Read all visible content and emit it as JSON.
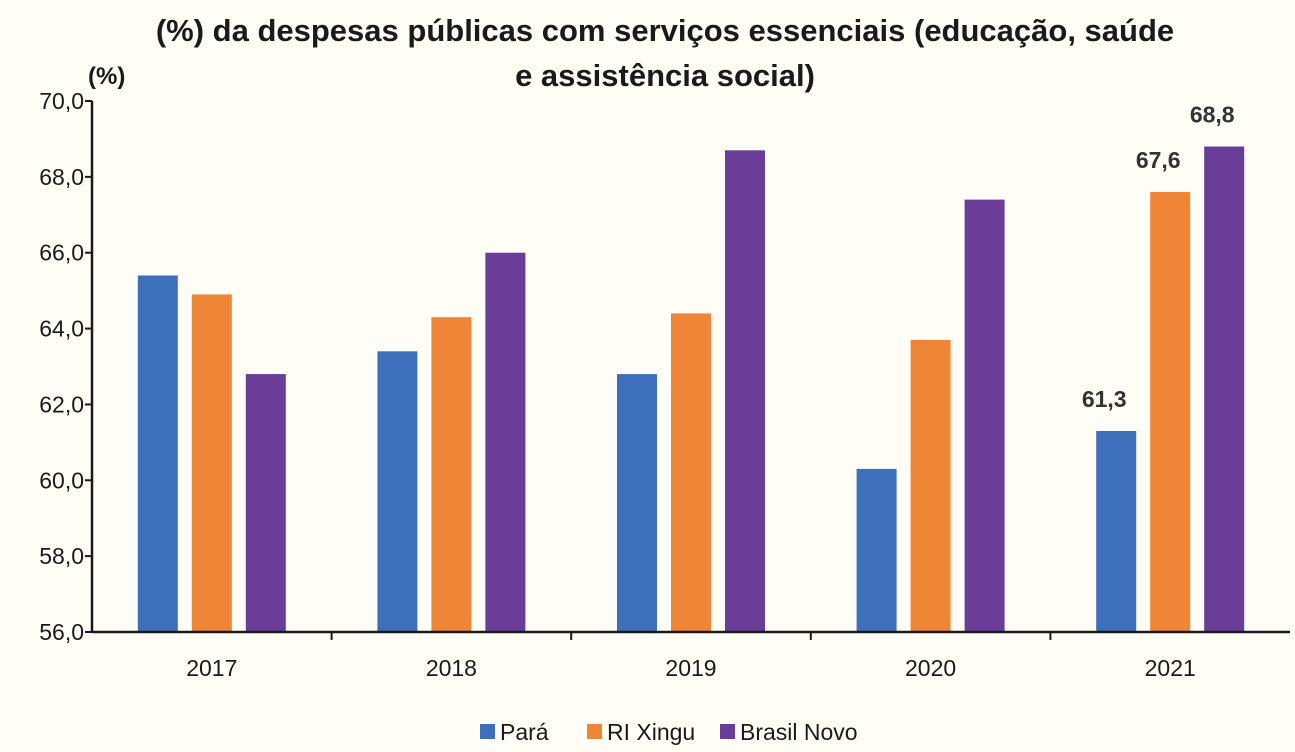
{
  "chart_data": {
    "type": "bar",
    "title_lines": [
      "(%) da despesas públicas com serviços essenciais (educação, saúde",
      "e assistência social)"
    ],
    "ylabel": "(%)",
    "xlabel": "",
    "ylim": [
      56.0,
      70.0
    ],
    "yticks": [
      "56,0",
      "58,0",
      "60,0",
      "62,0",
      "64,0",
      "66,0",
      "68,0",
      "70,0"
    ],
    "categories": [
      "2017",
      "2018",
      "2019",
      "2020",
      "2021"
    ],
    "series": [
      {
        "name": "Pará",
        "color": "#3d6fba",
        "values": [
          65.4,
          63.4,
          62.8,
          60.3,
          61.3
        ]
      },
      {
        "name": "RI Xingu",
        "color": "#ef8536",
        "values": [
          64.9,
          64.3,
          64.4,
          63.7,
          67.6
        ]
      },
      {
        "name": "Brasil Novo",
        "color": "#6a3d99",
        "values": [
          62.8,
          66.0,
          68.7,
          67.4,
          68.8
        ]
      }
    ],
    "data_labels": [
      {
        "series": 0,
        "category": 4,
        "text": "61,3"
      },
      {
        "series": 1,
        "category": 4,
        "text": "67,6"
      },
      {
        "series": 2,
        "category": 4,
        "text": "68,8"
      }
    ],
    "grid": false,
    "legend_position": "bottom"
  }
}
